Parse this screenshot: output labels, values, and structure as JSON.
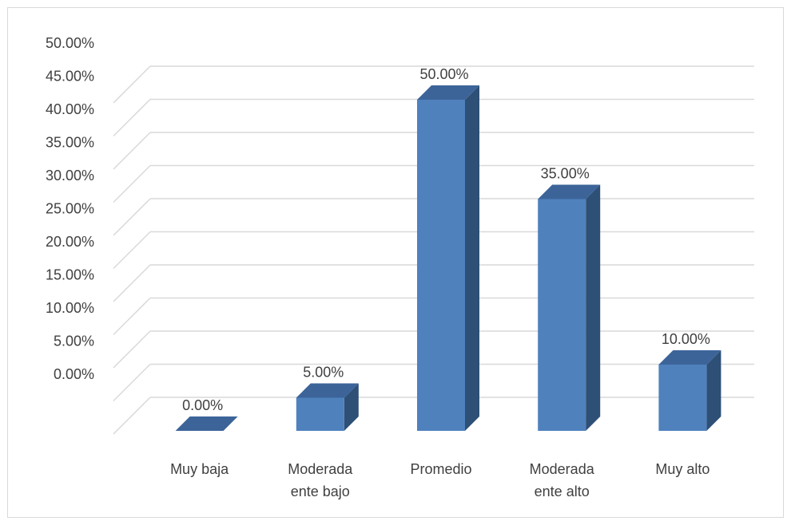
{
  "chart_data": {
    "type": "bar",
    "title": "",
    "xlabel": "",
    "ylabel": "",
    "ylim": [
      0,
      0.5
    ],
    "y_ticks": [
      "0.00%",
      "5.00%",
      "10.00%",
      "15.00%",
      "20.00%",
      "25.00%",
      "30.00%",
      "35.00%",
      "40.00%",
      "45.00%",
      "50.00%"
    ],
    "categories": [
      [
        "Muy baja"
      ],
      [
        "Moderada",
        "ente bajo"
      ],
      [
        "Promedio"
      ],
      [
        "Moderada",
        "ente alto"
      ],
      [
        "Muy alto"
      ]
    ],
    "values": [
      0.0,
      0.05,
      0.5,
      0.35,
      0.1
    ],
    "data_labels": [
      "0.00%",
      "5.00%",
      "50.00%",
      "35.00%",
      "10.00%"
    ],
    "grid": true,
    "legend": "none",
    "style": "3d-column",
    "colors": {
      "bar_front": "#4F81BD",
      "bar_side": "#2E4F76",
      "bar_top": "#3C6499",
      "grid": "#d9d9d9",
      "text": "#404040"
    }
  }
}
